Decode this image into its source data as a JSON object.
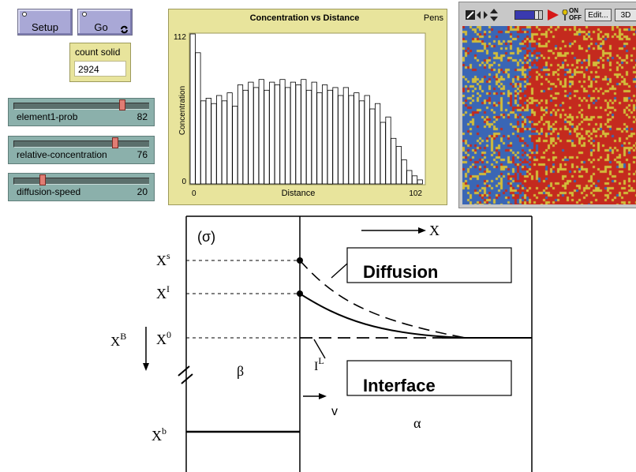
{
  "buttons": {
    "setup_label": "Setup",
    "go_label": "Go"
  },
  "monitor": {
    "title": "count solid",
    "value": "2924"
  },
  "sliders": [
    {
      "name": "element1-prob",
      "value": "82",
      "position": 0.82
    },
    {
      "name": "relative-concentration",
      "value": "76",
      "position": 0.76
    },
    {
      "name": "diffusion-speed",
      "value": "20",
      "position": 0.2
    }
  ],
  "plot": {
    "pens_label": "Pens",
    "chart_data": {
      "type": "bar",
      "title": "Concentration vs Distance",
      "xlabel": "Distance",
      "ylabel": "Concentration",
      "xlim": [
        0,
        102
      ],
      "ylim": [
        0,
        112
      ],
      "x_tick_labels": [
        "0",
        "102"
      ],
      "y_tick_labels": [
        "0",
        "112"
      ],
      "values": [
        112,
        98,
        62,
        64,
        60,
        66,
        62,
        68,
        58,
        74,
        70,
        76,
        72,
        78,
        70,
        76,
        74,
        78,
        72,
        76,
        74,
        78,
        70,
        76,
        68,
        74,
        70,
        72,
        66,
        72,
        66,
        68,
        62,
        66,
        56,
        60,
        46,
        50,
        34,
        28,
        18,
        10,
        6,
        3
      ]
    }
  },
  "view": {
    "toolbar": {
      "edit_label": "Edit...",
      "three_d_label": "3D",
      "on_label": "ON",
      "off_label": "OFF"
    },
    "colors": {
      "blue": "#3a66b5",
      "red": "#c42a1e",
      "yellow": "#d2bd3a"
    }
  },
  "diagram": {
    "panel_label": "(σ)",
    "axis_x_label": "X",
    "label_xs": "X^s",
    "label_xi": "X^I",
    "label_x0": "X^0",
    "label_xB_left": "X^B",
    "label_xb": "X^b",
    "beta_phase": "β",
    "alpha_phase": "α",
    "interface_mark": "I^L",
    "v_mark": "v",
    "diffusion_label": "Diffusion",
    "interface_label": "Interface"
  }
}
